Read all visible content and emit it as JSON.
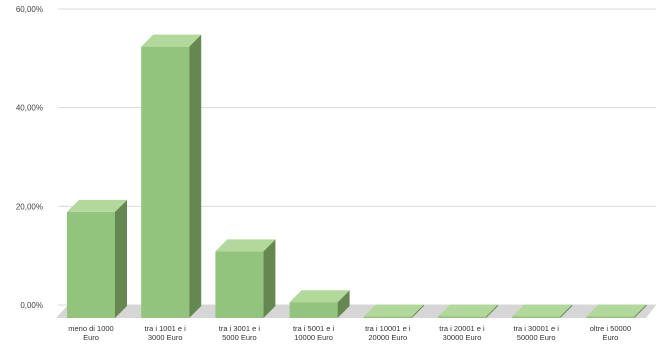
{
  "chart_data": {
    "type": "bar",
    "style": "3d-column",
    "categories": [
      [
        "meno di 1000",
        "Euro"
      ],
      [
        "tra i 1001 e i",
        "3000 Euro"
      ],
      [
        "tra i 3001 e i",
        "5000 Euro"
      ],
      [
        "tra i 5001 e i",
        "10000 Euro"
      ],
      [
        "tra i 10001 e i",
        "20000 Euro"
      ],
      [
        "tra i 20001 e i",
        "30000 Euro"
      ],
      [
        "tra i 30001 e i",
        "50000 Euro"
      ],
      [
        "oltre i 50000",
        "Euro"
      ]
    ],
    "values": [
      21.5,
      55.0,
      13.5,
      3.2,
      0.2,
      0.2,
      0.2,
      0.2
    ],
    "value_unit": "%",
    "ylim": [
      0,
      60
    ],
    "yticks": [
      "0,00%",
      "20,00%",
      "40,00%",
      "60,00%"
    ],
    "ytick_values": [
      0,
      20,
      40,
      60
    ],
    "grid": true,
    "legend": "none",
    "title": "",
    "xlabel": "",
    "ylabel": "",
    "colors": {
      "bar_front": "#93c47d",
      "bar_top": "#b3d89c",
      "bar_side": "#64884f",
      "floor": "#d6d6d6",
      "grid": "#d9d9d9"
    }
  }
}
